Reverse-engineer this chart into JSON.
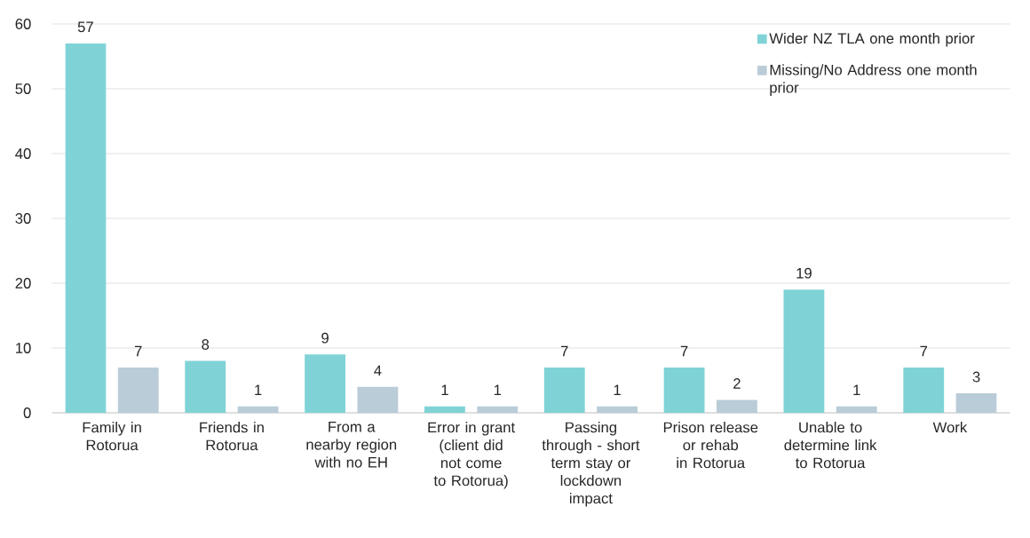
{
  "chart_data": {
    "type": "bar",
    "categories": [
      "Family in Rotorua",
      "Friends in Rotorua",
      "From a nearby region with no EH",
      "Error in grant (client did not come to Rotorua)",
      "Passing through - short term stay or lockdown impact",
      "Prison release or rehab in Rotorua",
      "Unable to determine link to Rotorua",
      "Work"
    ],
    "series": [
      {
        "name": "Wider NZ TLA one month prior",
        "color": "#7fd3d6",
        "values": [
          57,
          8,
          9,
          1,
          7,
          7,
          19,
          7
        ]
      },
      {
        "name": "Missing/No Address one month prior",
        "color": "#b9ccd8",
        "values": [
          7,
          1,
          4,
          1,
          1,
          2,
          1,
          3
        ]
      }
    ],
    "ylim": [
      0,
      60
    ],
    "yticks": [
      0,
      10,
      20,
      30,
      40,
      50,
      60
    ],
    "grid": "y",
    "legend": "top right",
    "data_labels": true
  }
}
